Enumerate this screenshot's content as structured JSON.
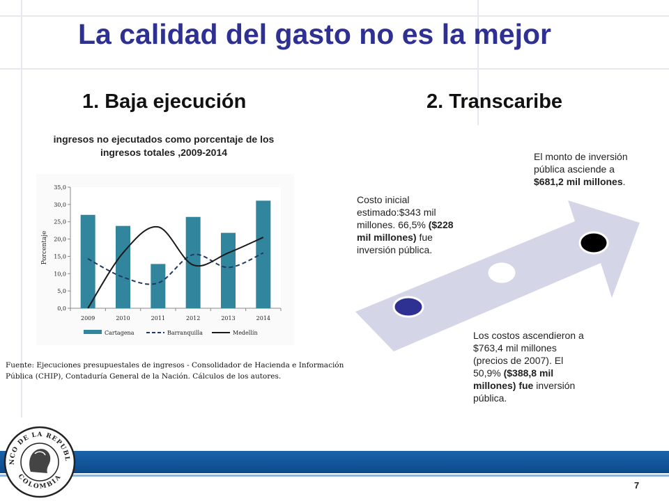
{
  "slide": {
    "title": "La calidad del gasto no es la mejor",
    "left_heading": "1. Baja ejecución",
    "right_heading": "2. Transcaribe",
    "page_number": "7"
  },
  "chart_data": {
    "type": "bar",
    "title": "ingresos no ejecutados como porcentaje de los ingresos totales ,2009-2014",
    "ylabel": "Porcentaje",
    "ylim": [
      0,
      35
    ],
    "yticks": [
      "0,0",
      "5,0",
      "10,0",
      "15,0",
      "20,0",
      "25,0",
      "30,0",
      "35,0"
    ],
    "categories": [
      "2009",
      "2010",
      "2011",
      "2012",
      "2013",
      "2014"
    ],
    "series": [
      {
        "name": "Cartagena",
        "type": "bar",
        "color": "#31859c",
        "values": [
          27.0,
          23.8,
          12.8,
          26.4,
          21.8,
          31.1
        ]
      },
      {
        "name": "Barranquilla",
        "type": "line",
        "style": "dashed",
        "color": "#1f3864",
        "values": [
          14.3,
          9.0,
          7.3,
          15.5,
          11.8,
          16.0
        ]
      },
      {
        "name": "Medellín",
        "type": "line",
        "style": "solid",
        "color": "#1a1a1a",
        "values": [
          0.0,
          16.0,
          23.5,
          12.5,
          16.0,
          20.5
        ]
      }
    ],
    "legend": "bottom",
    "grid": false,
    "source": "Fuente: Ejecuciones presupuestales de ingresos - Consolidador de Hacienda e Información Pública (CHIP), Contaduría General de la Nación. Cálculos de los autores."
  },
  "transcaribe": {
    "arrow_color": "#d4d6e8",
    "dot_colors": [
      "#2e3192",
      "#ffffff",
      "#000000"
    ],
    "note1": {
      "text1": "Costo inicial estimado:$343 mil millones. 66,5% ",
      "bold": "($228 mil millones)",
      "text2": " fue inversión pública."
    },
    "note2": {
      "text1": "Los costos ascendieron a $763,4 mil millones (precios de 2007). El 50,9% ",
      "bold": "($388,8 mil millones) fue",
      "text2": "  inversión pública."
    },
    "note3": {
      "text1": "El monto de inversión pública asciende a ",
      "bold": "$681,2 mil millones",
      "text2": "."
    }
  },
  "logo": {
    "text_top": "BANCO DE LA REPUBLICA",
    "text_bottom": "COLOMBIA"
  }
}
